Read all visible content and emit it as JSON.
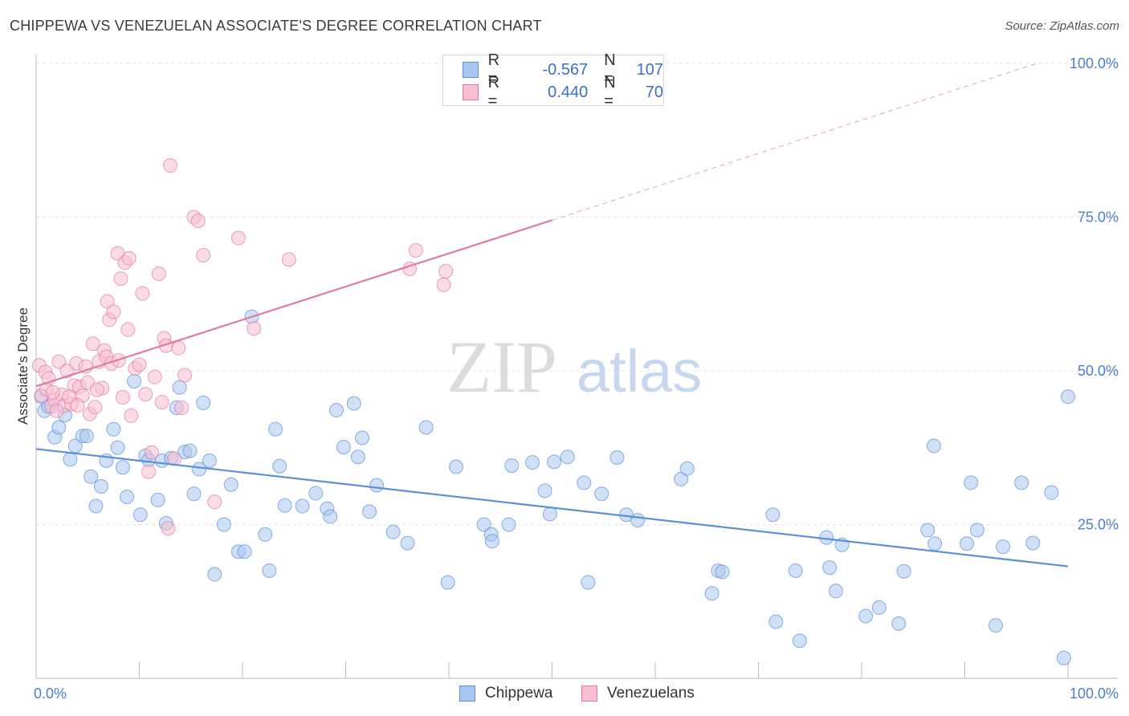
{
  "header": {
    "title": "CHIPPEWA VS VENEZUELAN ASSOCIATE'S DEGREE CORRELATION CHART",
    "source": "Source: ZipAtlas.com"
  },
  "legend": {
    "rows": [
      {
        "r_label": "R =",
        "r_value": "-0.567",
        "n_label": "N =",
        "n_value": "107",
        "color": "#a9c6f0",
        "border": "#5b8fd6"
      },
      {
        "r_label": "R =",
        "r_value": "0.440",
        "n_label": "N =",
        "n_value": "70",
        "color": "#f7c0d1",
        "border": "#e07ba0"
      }
    ]
  },
  "watermark": {
    "zip": "ZIP",
    "atlas": "atlas"
  },
  "chart_data": {
    "type": "scatter",
    "title": "CHIPPEWA VS VENEZUELAN ASSOCIATE'S DEGREE CORRELATION CHART",
    "xlabel": "",
    "ylabel": "Associate's Degree",
    "xlim": [
      0,
      100
    ],
    "ylim": [
      0,
      100
    ],
    "x_tick_labels": [
      "0.0%",
      "100.0%"
    ],
    "y_ticks": [
      25,
      50,
      75,
      100
    ],
    "y_tick_labels": [
      "25.0%",
      "50.0%",
      "75.0%",
      "100.0%"
    ],
    "grid": true,
    "legend_position": "top-center",
    "series": [
      {
        "name": "Chippewa",
        "color": "#5b8fd6",
        "fill": "#a9c6f0",
        "trend": {
          "x0": 0,
          "y0": 37.3,
          "x1": 100,
          "y1": 18.2
        },
        "points": [
          [
            0.5,
            45.8
          ],
          [
            0.8,
            43.5
          ],
          [
            1.2,
            44.2
          ],
          [
            1.8,
            39.2
          ],
          [
            2.2,
            40.8
          ],
          [
            2.8,
            42.8
          ],
          [
            3.3,
            35.6
          ],
          [
            3.8,
            37.8
          ],
          [
            4.5,
            39.4
          ],
          [
            4.9,
            39.4
          ],
          [
            5.3,
            32.8
          ],
          [
            5.8,
            28.0
          ],
          [
            6.3,
            31.2
          ],
          [
            6.8,
            35.4
          ],
          [
            7.5,
            40.5
          ],
          [
            7.9,
            37.5
          ],
          [
            8.4,
            34.3
          ],
          [
            8.8,
            29.5
          ],
          [
            9.5,
            48.3
          ],
          [
            10.1,
            26.6
          ],
          [
            10.6,
            36.2
          ],
          [
            10.9,
            35.5
          ],
          [
            11.8,
            29.0
          ],
          [
            12.2,
            35.4
          ],
          [
            12.6,
            25.2
          ],
          [
            13.1,
            35.8
          ],
          [
            13.6,
            44.0
          ],
          [
            13.9,
            47.3
          ],
          [
            14.4,
            36.8
          ],
          [
            14.9,
            37.0
          ],
          [
            15.3,
            30.0
          ],
          [
            15.8,
            34.0
          ],
          [
            16.2,
            44.8
          ],
          [
            16.8,
            35.4
          ],
          [
            17.3,
            16.9
          ],
          [
            18.2,
            25.0
          ],
          [
            18.9,
            31.5
          ],
          [
            19.6,
            20.6
          ],
          [
            20.2,
            20.6
          ],
          [
            20.9,
            58.8
          ],
          [
            22.6,
            17.5
          ],
          [
            22.2,
            23.4
          ],
          [
            23.2,
            40.5
          ],
          [
            23.6,
            34.5
          ],
          [
            24.1,
            28.1
          ],
          [
            25.8,
            28.0
          ],
          [
            27.1,
            30.1
          ],
          [
            28.2,
            27.6
          ],
          [
            28.5,
            26.3
          ],
          [
            29.1,
            43.6
          ],
          [
            29.8,
            37.6
          ],
          [
            30.8,
            44.7
          ],
          [
            31.2,
            36.0
          ],
          [
            31.6,
            39.1
          ],
          [
            32.3,
            27.1
          ],
          [
            33.0,
            31.4
          ],
          [
            34.6,
            23.8
          ],
          [
            36.0,
            22.0
          ],
          [
            37.8,
            40.8
          ],
          [
            39.9,
            15.6
          ],
          [
            40.7,
            34.4
          ],
          [
            43.4,
            25.0
          ],
          [
            44.1,
            23.4
          ],
          [
            44.2,
            22.3
          ],
          [
            45.8,
            25.0
          ],
          [
            46.1,
            34.6
          ],
          [
            48.1,
            35.1
          ],
          [
            49.3,
            30.5
          ],
          [
            49.8,
            26.7
          ],
          [
            50.2,
            35.2
          ],
          [
            51.5,
            36.0
          ],
          [
            53.5,
            15.6
          ],
          [
            53.1,
            31.8
          ],
          [
            54.8,
            30.0
          ],
          [
            56.3,
            35.9
          ],
          [
            57.2,
            26.6
          ],
          [
            58.3,
            25.7
          ],
          [
            62.5,
            32.4
          ],
          [
            63.1,
            34.1
          ],
          [
            66.1,
            17.5
          ],
          [
            66.5,
            17.3
          ],
          [
            65.5,
            13.8
          ],
          [
            71.4,
            26.6
          ],
          [
            71.7,
            9.2
          ],
          [
            73.6,
            17.5
          ],
          [
            74.0,
            6.1
          ],
          [
            76.6,
            22.9
          ],
          [
            76.9,
            18.0
          ],
          [
            77.5,
            14.2
          ],
          [
            78.1,
            21.7
          ],
          [
            80.4,
            10.1
          ],
          [
            81.7,
            11.5
          ],
          [
            83.6,
            8.9
          ],
          [
            84.1,
            17.4
          ],
          [
            86.4,
            24.1
          ],
          [
            87.1,
            21.9
          ],
          [
            87.0,
            37.8
          ],
          [
            90.2,
            21.9
          ],
          [
            90.6,
            31.8
          ],
          [
            91.2,
            24.1
          ],
          [
            93.7,
            21.4
          ],
          [
            95.5,
            31.8
          ],
          [
            96.6,
            22.0
          ],
          [
            98.4,
            30.2
          ],
          [
            100.0,
            45.8
          ],
          [
            99.6,
            3.3
          ],
          [
            93.0,
            8.6
          ]
        ]
      },
      {
        "name": "Venezuelans",
        "color": "#e07ba0",
        "fill": "#f7c0d1",
        "trend": {
          "x0": 0,
          "y0": 47.5,
          "x1": 50,
          "y1": 74.5
        },
        "trend_extension": {
          "x0": 50,
          "y0": 74.5,
          "x1": 97,
          "y1": 100
        },
        "points": [
          [
            0.3,
            50.9
          ],
          [
            0.5,
            46.0
          ],
          [
            0.9,
            49.8
          ],
          [
            1.2,
            48.8
          ],
          [
            1.5,
            44.2
          ],
          [
            1.8,
            45.3
          ],
          [
            2.2,
            51.5
          ],
          [
            2.5,
            46.1
          ],
          [
            2.7,
            44.3
          ],
          [
            3.0,
            50.0
          ],
          [
            3.4,
            44.6
          ],
          [
            3.7,
            47.6
          ],
          [
            3.9,
            51.2
          ],
          [
            4.2,
            47.4
          ],
          [
            4.5,
            46.0
          ],
          [
            4.8,
            50.7
          ],
          [
            5.0,
            48.1
          ],
          [
            5.2,
            43.0
          ],
          [
            5.5,
            54.4
          ],
          [
            5.7,
            44.1
          ],
          [
            6.1,
            51.5
          ],
          [
            6.4,
            47.2
          ],
          [
            6.6,
            53.3
          ],
          [
            6.8,
            52.3
          ],
          [
            6.9,
            61.3
          ],
          [
            7.1,
            58.3
          ],
          [
            7.5,
            59.6
          ],
          [
            7.9,
            69.1
          ],
          [
            8.2,
            65.0
          ],
          [
            8.6,
            67.6
          ],
          [
            8.9,
            56.7
          ],
          [
            8.4,
            45.7
          ],
          [
            9.0,
            68.3
          ],
          [
            9.2,
            42.7
          ],
          [
            9.6,
            50.4
          ],
          [
            10.0,
            51.0
          ],
          [
            10.3,
            62.6
          ],
          [
            10.6,
            46.2
          ],
          [
            10.9,
            33.6
          ],
          [
            11.5,
            49.0
          ],
          [
            11.9,
            65.8
          ],
          [
            12.2,
            44.9
          ],
          [
            12.4,
            55.3
          ],
          [
            12.6,
            54.1
          ],
          [
            12.8,
            24.4
          ],
          [
            13.0,
            83.4
          ],
          [
            13.4,
            35.7
          ],
          [
            13.8,
            53.7
          ],
          [
            14.1,
            44.0
          ],
          [
            14.4,
            49.3
          ],
          [
            15.3,
            75.0
          ],
          [
            15.7,
            74.4
          ],
          [
            16.2,
            68.8
          ],
          [
            17.3,
            28.7
          ],
          [
            19.6,
            71.6
          ],
          [
            21.1,
            56.9
          ],
          [
            24.5,
            68.1
          ],
          [
            36.2,
            66.6
          ],
          [
            36.8,
            69.6
          ],
          [
            39.5,
            64.0
          ],
          [
            39.7,
            66.2
          ],
          [
            2.0,
            43.5
          ],
          [
            1.0,
            47.0
          ],
          [
            3.2,
            45.8
          ],
          [
            4.0,
            44.4
          ],
          [
            5.9,
            46.9
          ],
          [
            7.3,
            51.2
          ],
          [
            8.0,
            51.7
          ],
          [
            11.2,
            36.7
          ],
          [
            1.6,
            46.5
          ]
        ]
      }
    ]
  },
  "bottom_legend": {
    "items": [
      "Chippewa",
      "Venezuelans"
    ]
  }
}
